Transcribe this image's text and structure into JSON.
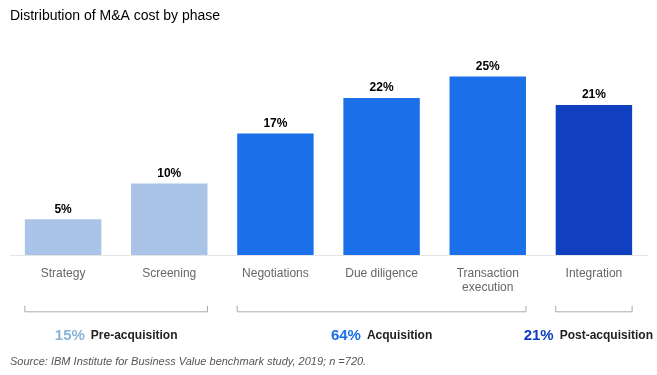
{
  "chart_data": {
    "type": "bar",
    "title": "Distribution of M&A cost by phase",
    "categories": [
      "Strategy",
      "Screening",
      "Negotiations",
      "Due diligence",
      "Transaction\nexecution",
      "Integration"
    ],
    "values": [
      5,
      10,
      17,
      22,
      25,
      21
    ],
    "value_labels": [
      "5%",
      "10%",
      "17%",
      "22%",
      "25%",
      "21%"
    ],
    "colors": [
      "#aac4e8",
      "#aac4e8",
      "#1b6fe8",
      "#1b6fe8",
      "#1b6fe8",
      "#1040c0"
    ],
    "ylim": [
      0,
      30
    ],
    "grid": false,
    "data_labels": true,
    "tick_labels": "x",
    "groups": [
      {
        "name": "Pre-acquisition",
        "value": 15,
        "label": "15%",
        "color": "#8ab4d8",
        "indices": [
          0,
          1
        ]
      },
      {
        "name": "Acquisition",
        "value": 64,
        "label": "64%",
        "color": "#1b6fe8",
        "indices": [
          2,
          3,
          4
        ]
      },
      {
        "name": "Post-acquisition",
        "value": 21,
        "label": "21%",
        "color": "#1040c0",
        "indices": [
          5
        ]
      }
    ],
    "source": "Source: IBM Institute for Business Value benchmark study, 2019; n =720."
  }
}
